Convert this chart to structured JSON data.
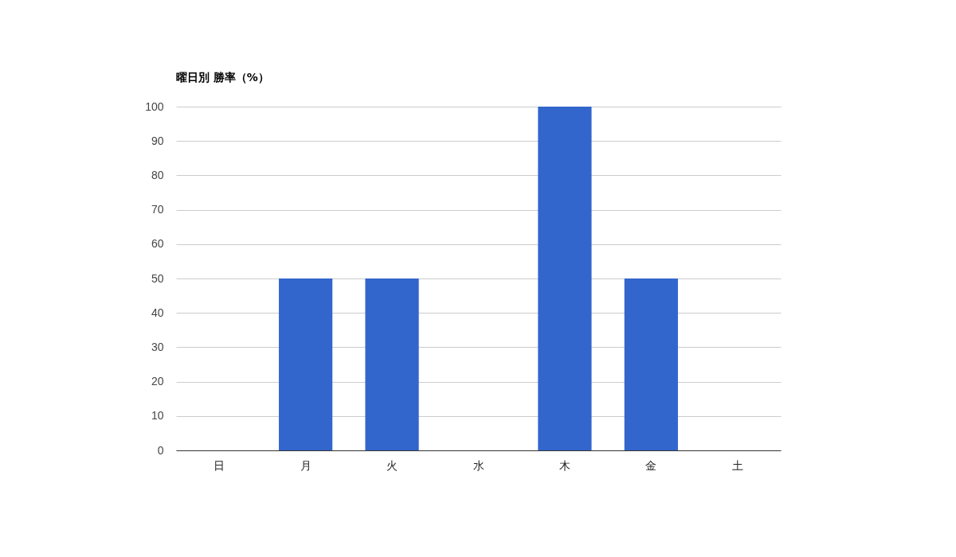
{
  "chart_data": {
    "type": "bar",
    "title": "曜日別 勝率（%）",
    "categories": [
      "日",
      "月",
      "火",
      "水",
      "木",
      "金",
      "土"
    ],
    "values": [
      0,
      50,
      50,
      0,
      100,
      50,
      0
    ],
    "color": "#3366cc",
    "ylim": [
      0,
      100
    ],
    "yticks": [
      0,
      10,
      20,
      30,
      40,
      50,
      60,
      70,
      80,
      90,
      100
    ],
    "grid": "y"
  }
}
